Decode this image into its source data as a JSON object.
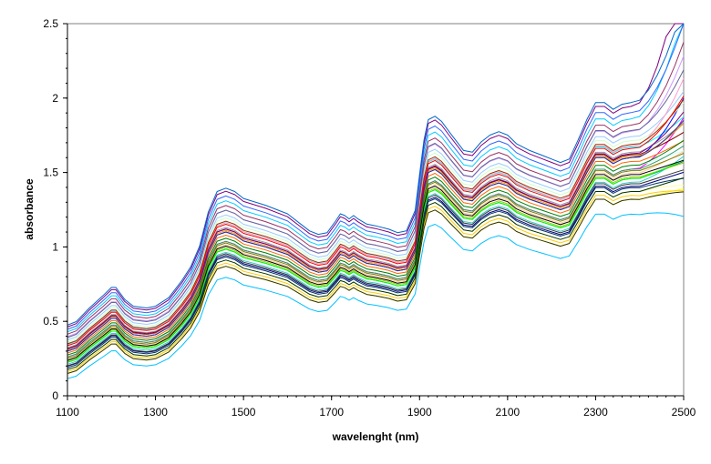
{
  "chart_data": {
    "type": "line",
    "title": "",
    "xlabel": "wavelenght (nm)",
    "ylabel": "absorbance",
    "xlim": [
      1100,
      2500
    ],
    "ylim": [
      0,
      2.5
    ],
    "xticks": [
      1100,
      1300,
      1500,
      1700,
      1900,
      2100,
      2300,
      2500
    ],
    "yticks": [
      0,
      0.5,
      1,
      1.5,
      2,
      2.5
    ],
    "grid": false,
    "legend": "none",
    "background": "#ffffff",
    "plot_border_color": "#808080",
    "series_count": 40,
    "base_x": [
      1100,
      1120,
      1150,
      1180,
      1200,
      1210,
      1230,
      1250,
      1280,
      1300,
      1330,
      1360,
      1380,
      1400,
      1420,
      1440,
      1460,
      1480,
      1500,
      1550,
      1600,
      1630,
      1650,
      1670,
      1690,
      1710,
      1720,
      1730,
      1740,
      1750,
      1760,
      1780,
      1800,
      1830,
      1850,
      1870,
      1890,
      1900,
      1910,
      1920,
      1935,
      1950,
      1970,
      2000,
      2020,
      2040,
      2060,
      2080,
      2100,
      2120,
      2150,
      2180,
      2200,
      2220,
      2240,
      2260,
      2280,
      2300,
      2320,
      2340,
      2360,
      2380,
      2400,
      2420,
      2440,
      2460,
      2480,
      2500
    ],
    "base_y": [
      0.3,
      0.32,
      0.4,
      0.47,
      0.52,
      0.52,
      0.45,
      0.41,
      0.4,
      0.41,
      0.46,
      0.56,
      0.64,
      0.76,
      0.96,
      1.08,
      1.1,
      1.08,
      1.04,
      1.0,
      0.95,
      0.89,
      0.85,
      0.83,
      0.84,
      0.91,
      0.95,
      0.94,
      0.92,
      0.94,
      0.92,
      0.89,
      0.88,
      0.86,
      0.84,
      0.85,
      0.97,
      1.18,
      1.38,
      1.5,
      1.52,
      1.49,
      1.42,
      1.32,
      1.31,
      1.37,
      1.41,
      1.43,
      1.41,
      1.36,
      1.32,
      1.29,
      1.27,
      1.25,
      1.27,
      1.38,
      1.5,
      1.6,
      1.6,
      1.56,
      1.59,
      1.6,
      1.6,
      1.62,
      1.64,
      1.66,
      1.68,
      1.7
    ],
    "series": [
      {
        "color": "#00c0ff",
        "offset": -0.14,
        "scale": 0.85,
        "tail": -0.1
      },
      {
        "color": "#000080",
        "offset": -0.08,
        "scale": 0.93,
        "tail": 0.0
      },
      {
        "color": "#ff00ff",
        "offset": -0.03,
        "scale": 0.97,
        "tail": 0.25
      },
      {
        "color": "#ffff00",
        "offset": -0.12,
        "scale": 0.9,
        "tail": -0.02
      },
      {
        "color": "#00ffff",
        "offset": 0.04,
        "scale": 1.02,
        "tail": 0.1
      },
      {
        "color": "#800080",
        "offset": 0.12,
        "scale": 1.14,
        "tail": 0.9
      },
      {
        "color": "#800000",
        "offset": 0.02,
        "scale": 1.0,
        "tail": 0.05
      },
      {
        "color": "#008080",
        "offset": -0.06,
        "scale": 0.95,
        "tail": 0.02
      },
      {
        "color": "#0000ff",
        "offset": 0.0,
        "scale": 1.0,
        "tail": 0.3
      },
      {
        "color": "#00ccff",
        "offset": 0.1,
        "scale": 1.1,
        "tail": 0.6
      },
      {
        "color": "#ccffff",
        "offset": -0.02,
        "scale": 0.98,
        "tail": 0.0
      },
      {
        "color": "#ccffcc",
        "offset": 0.05,
        "scale": 1.04,
        "tail": 0.15
      },
      {
        "color": "#ffff99",
        "offset": -0.1,
        "scale": 0.92,
        "tail": -0.05
      },
      {
        "color": "#99ccff",
        "offset": 0.06,
        "scale": 1.05,
        "tail": 0.2
      },
      {
        "color": "#ff99cc",
        "offset": 0.03,
        "scale": 1.03,
        "tail": 0.35
      },
      {
        "color": "#cc99ff",
        "offset": 0.08,
        "scale": 1.06,
        "tail": 0.4
      },
      {
        "color": "#ffcc99",
        "offset": -0.04,
        "scale": 0.96,
        "tail": 0.05
      },
      {
        "color": "#3366ff",
        "offset": 0.11,
        "scale": 1.12,
        "tail": 0.5
      },
      {
        "color": "#33cccc",
        "offset": -0.07,
        "scale": 0.94,
        "tail": 0.08
      },
      {
        "color": "#99cc00",
        "offset": -0.05,
        "scale": 0.95,
        "tail": 0.0
      },
      {
        "color": "#ffcc00",
        "offset": -0.11,
        "scale": 0.91,
        "tail": -0.06
      },
      {
        "color": "#ff9900",
        "offset": 0.01,
        "scale": 1.0,
        "tail": 0.12
      },
      {
        "color": "#ff6600",
        "offset": -0.01,
        "scale": 0.99,
        "tail": 0.04
      },
      {
        "color": "#666699",
        "offset": 0.07,
        "scale": 1.07,
        "tail": 0.3
      },
      {
        "color": "#969696",
        "offset": 0.02,
        "scale": 1.01,
        "tail": 0.1
      },
      {
        "color": "#003366",
        "offset": -0.09,
        "scale": 0.93,
        "tail": -0.03
      },
      {
        "color": "#339966",
        "offset": -0.03,
        "scale": 0.97,
        "tail": 0.06
      },
      {
        "color": "#003300",
        "offset": -0.1,
        "scale": 0.92,
        "tail": 0.0
      },
      {
        "color": "#333300",
        "offset": -0.12,
        "scale": 0.9,
        "tail": -0.04
      },
      {
        "color": "#993300",
        "offset": 0.04,
        "scale": 1.03,
        "tail": 0.2
      },
      {
        "color": "#993366",
        "offset": 0.09,
        "scale": 1.08,
        "tail": 0.45
      },
      {
        "color": "#333399",
        "offset": 0.0,
        "scale": 1.0,
        "tail": 0.15
      },
      {
        "color": "#333333",
        "offset": -0.08,
        "scale": 0.94,
        "tail": 0.0
      },
      {
        "color": "#ff0000",
        "offset": 0.03,
        "scale": 1.02,
        "tail": 0.25
      },
      {
        "color": "#00ff00",
        "offset": -0.06,
        "scale": 0.95,
        "tail": 0.03
      },
      {
        "color": "#0066cc",
        "offset": 0.13,
        "scale": 1.15,
        "tail": 0.55
      },
      {
        "color": "#808000",
        "offset": -0.04,
        "scale": 0.97,
        "tail": 0.02
      },
      {
        "color": "#008000",
        "offset": -0.02,
        "scale": 0.98,
        "tail": 0.07
      },
      {
        "color": "#800080",
        "offset": 0.01,
        "scale": 1.01,
        "tail": 0.18
      },
      {
        "color": "#000000",
        "offset": -0.05,
        "scale": 0.96,
        "tail": 0.0
      }
    ]
  }
}
